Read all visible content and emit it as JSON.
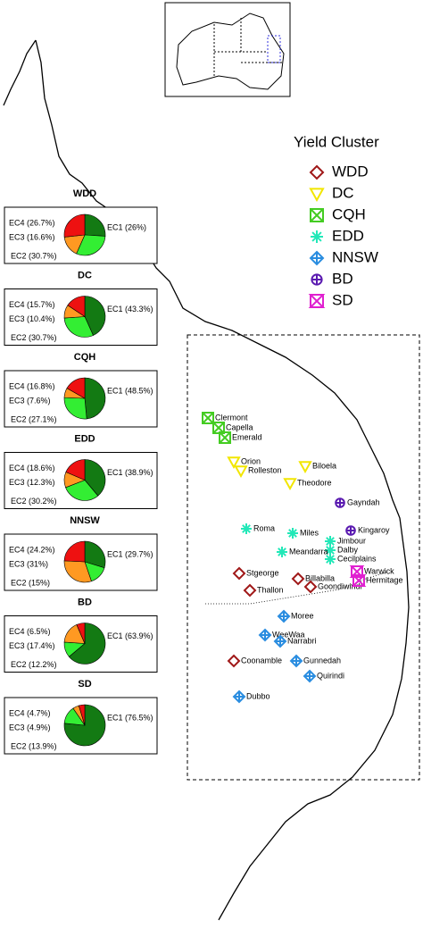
{
  "legend": {
    "title": "Yield Cluster",
    "items": [
      {
        "label": "WDD",
        "color": "#a01818",
        "shape": "diamond"
      },
      {
        "label": "DC",
        "color": "#f2e600",
        "shape": "triangle"
      },
      {
        "label": "CQH",
        "color": "#44cc22",
        "shape": "square-x"
      },
      {
        "label": "EDD",
        "color": "#22e8b8",
        "shape": "asterisk"
      },
      {
        "label": "NNSW",
        "color": "#2a8de0",
        "shape": "diamond-cross"
      },
      {
        "label": "BD",
        "color": "#5a1ab0",
        "shape": "circle-plus"
      },
      {
        "label": "SD",
        "color": "#e020d0",
        "shape": "hourglass"
      }
    ]
  },
  "pies": [
    {
      "title": "WDD",
      "slices": [
        {
          "label": "EC1 (26%)",
          "value": 26,
          "color": "#137a13"
        },
        {
          "label": "EC2 (30.7%)",
          "value": 30.7,
          "color": "#33ee33"
        },
        {
          "label": "EC3 (16.6%)",
          "value": 16.6,
          "color": "#ff9922"
        },
        {
          "label": "EC4 (26.7%)",
          "value": 26.7,
          "color": "#ee1111"
        }
      ]
    },
    {
      "title": "DC",
      "slices": [
        {
          "label": "EC1 (43.3%)",
          "value": 43.3,
          "color": "#137a13"
        },
        {
          "label": "EC2 (30.7%)",
          "value": 30.7,
          "color": "#33ee33"
        },
        {
          "label": "EC3 (10.4%)",
          "value": 10.4,
          "color": "#ff9922"
        },
        {
          "label": "EC4 (15.7%)",
          "value": 15.7,
          "color": "#ee1111"
        }
      ]
    },
    {
      "title": "CQH",
      "slices": [
        {
          "label": "EC1 (48.5%)",
          "value": 48.5,
          "color": "#137a13"
        },
        {
          "label": "EC2 (27.1%)",
          "value": 27.1,
          "color": "#33ee33"
        },
        {
          "label": "EC3 (7.6%)",
          "value": 7.6,
          "color": "#ff9922"
        },
        {
          "label": "EC4 (16.8%)",
          "value": 16.8,
          "color": "#ee1111"
        }
      ]
    },
    {
      "title": "EDD",
      "slices": [
        {
          "label": "EC1 (38.9%)",
          "value": 38.9,
          "color": "#137a13"
        },
        {
          "label": "EC2 (30.2%)",
          "value": 30.2,
          "color": "#33ee33"
        },
        {
          "label": "EC3 (12.3%)",
          "value": 12.3,
          "color": "#ff9922"
        },
        {
          "label": "EC4 (18.6%)",
          "value": 18.6,
          "color": "#ee1111"
        }
      ]
    },
    {
      "title": "NNSW",
      "slices": [
        {
          "label": "EC1 (29.7%)",
          "value": 29.7,
          "color": "#137a13"
        },
        {
          "label": "EC2 (15%)",
          "value": 15,
          "color": "#33ee33"
        },
        {
          "label": "EC3 (31%)",
          "value": 31,
          "color": "#ff9922"
        },
        {
          "label": "EC4 (24.2%)",
          "value": 24.2,
          "color": "#ee1111"
        }
      ]
    },
    {
      "title": "BD",
      "slices": [
        {
          "label": "EC1 (63.9%)",
          "value": 63.9,
          "color": "#137a13"
        },
        {
          "label": "EC2 (12.2%)",
          "value": 12.2,
          "color": "#33ee33"
        },
        {
          "label": "EC3 (17.4%)",
          "value": 17.4,
          "color": "#ff9922"
        },
        {
          "label": "EC4 (6.5%)",
          "value": 6.5,
          "color": "#ee1111"
        }
      ]
    },
    {
      "title": "SD",
      "slices": [
        {
          "label": "EC1 (76.5%)",
          "value": 76.5,
          "color": "#137a13"
        },
        {
          "label": "EC2 (13.9%)",
          "value": 13.9,
          "color": "#33ee33"
        },
        {
          "label": "EC3 (4.9%)",
          "value": 4.9,
          "color": "#ff9922"
        },
        {
          "label": "EC4 (4.7%)",
          "value": 4.7,
          "color": "#ee1111"
        }
      ]
    }
  ],
  "sites": [
    {
      "name": "Clermont",
      "cluster": "CQH"
    },
    {
      "name": "Capella",
      "cluster": "CQH"
    },
    {
      "name": "Emerald",
      "cluster": "CQH"
    },
    {
      "name": "Orion",
      "cluster": "DC"
    },
    {
      "name": "Rolleston",
      "cluster": "DC"
    },
    {
      "name": "Biloela",
      "cluster": "DC"
    },
    {
      "name": "Theodore",
      "cluster": "DC"
    },
    {
      "name": "Gayndah",
      "cluster": "BD"
    },
    {
      "name": "Roma",
      "cluster": "EDD"
    },
    {
      "name": "Miles",
      "cluster": "EDD"
    },
    {
      "name": "Kingaroy",
      "cluster": "BD"
    },
    {
      "name": "Jimbour",
      "cluster": "EDD"
    },
    {
      "name": "Dalby",
      "cluster": "EDD"
    },
    {
      "name": "Meandarra",
      "cluster": "EDD"
    },
    {
      "name": "Cecilplains",
      "cluster": "EDD"
    },
    {
      "name": "Stgeorge",
      "cluster": "WDD"
    },
    {
      "name": "Billabilla",
      "cluster": "WDD"
    },
    {
      "name": "Goondiwindi",
      "cluster": "WDD"
    },
    {
      "name": "Thallon",
      "cluster": "WDD"
    },
    {
      "name": "Warwick",
      "cluster": "SD"
    },
    {
      "name": "Hermitage",
      "cluster": "SD"
    },
    {
      "name": "Moree",
      "cluster": "NNSW"
    },
    {
      "name": "WeeWaa",
      "cluster": "NNSW"
    },
    {
      "name": "Narrabri",
      "cluster": "NNSW"
    },
    {
      "name": "Coonamble",
      "cluster": "WDD"
    },
    {
      "name": "Gunnedah",
      "cluster": "NNSW"
    },
    {
      "name": "Quirindi",
      "cluster": "NNSW"
    },
    {
      "name": "Dubbo",
      "cluster": "NNSW"
    }
  ]
}
